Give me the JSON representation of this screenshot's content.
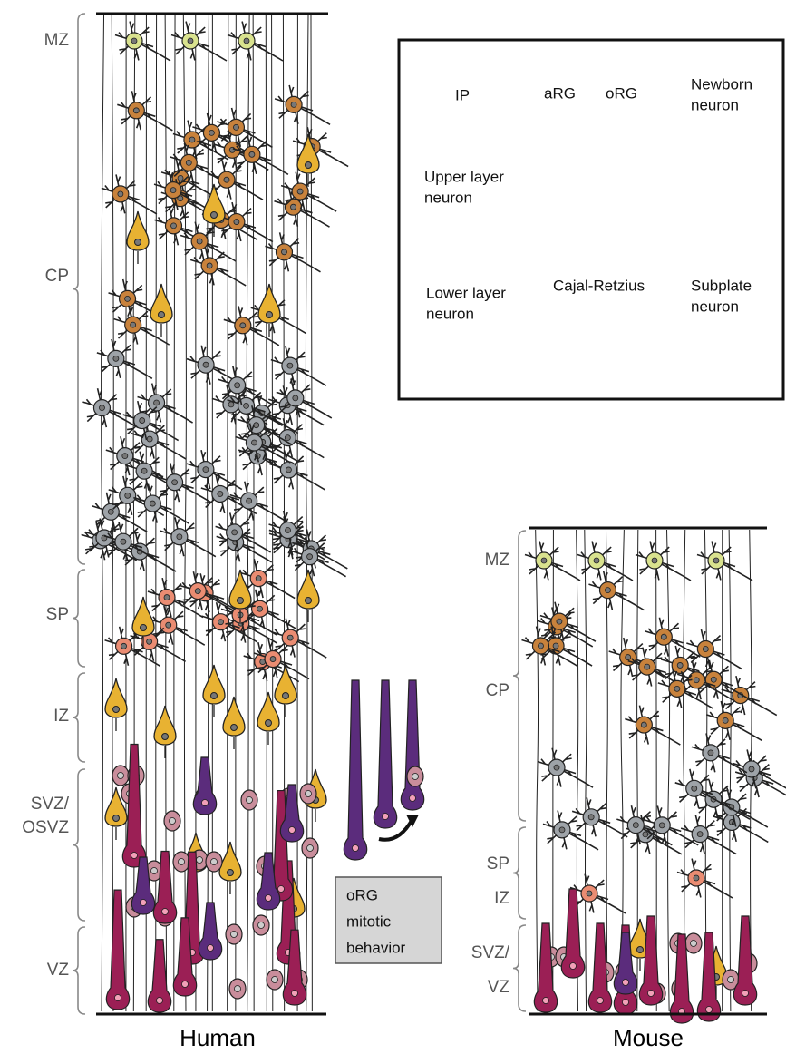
{
  "human": {
    "zones": [
      [
        "MZ"
      ],
      [
        "CP"
      ],
      [
        "SP"
      ],
      [
        "IZ"
      ],
      [
        "SVZ/",
        "OSVZ"
      ],
      [
        "VZ"
      ]
    ],
    "label": "Human"
  },
  "mouse": {
    "zones": [
      [
        "MZ"
      ],
      [
        "CP"
      ],
      [
        "SP",
        "IZ"
      ],
      [
        "SVZ/",
        "VZ"
      ]
    ],
    "label": "Mouse"
  },
  "legend": {
    "items": [
      {
        "lines": [
          "IP"
        ]
      },
      {
        "lines": [
          "aRG"
        ]
      },
      {
        "lines": [
          "oRG"
        ]
      },
      {
        "lines": [
          "Newborn",
          "neuron"
        ]
      },
      {
        "lines": [
          "Upper layer",
          "neuron"
        ]
      },
      {
        "lines": [
          "Lower layer",
          "neuron"
        ]
      },
      {
        "lines": [
          "Cajal-Retzius"
        ]
      },
      {
        "lines": [
          "Subplate",
          "neuron"
        ]
      }
    ]
  },
  "org_box": {
    "lines": [
      "oRG",
      "mitotic",
      "behavior"
    ]
  }
}
